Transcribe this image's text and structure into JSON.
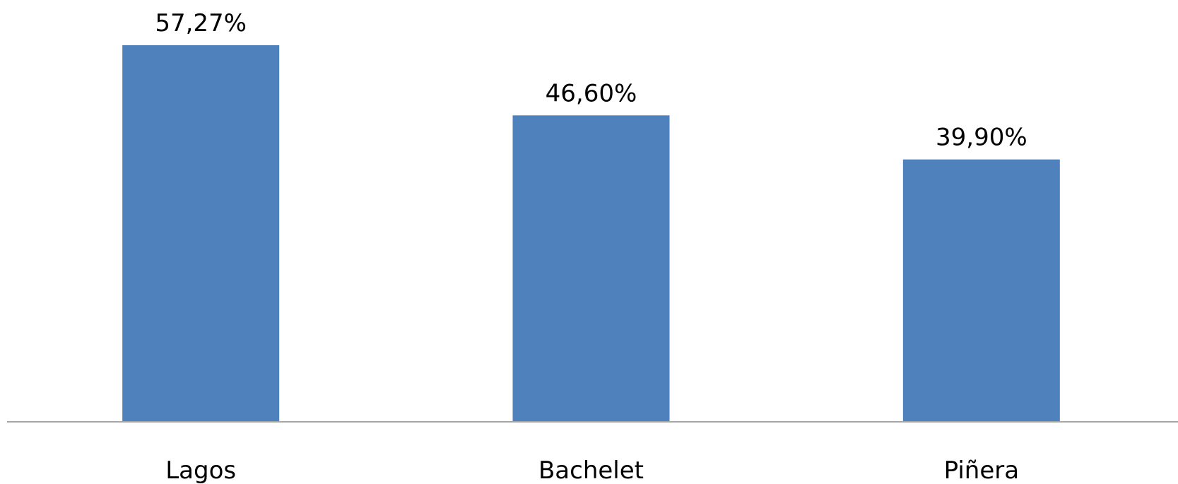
{
  "chart_data": {
    "type": "bar",
    "categories": [
      "Lagos",
      "Bachelet",
      "Piñera"
    ],
    "values": [
      57.27,
      46.6,
      39.9
    ],
    "value_labels": [
      "57,27%",
      "46,60%",
      "39,90%"
    ],
    "ylim": [
      0,
      60
    ],
    "grid": false,
    "legend": "none",
    "colors": {
      "bar": "#4f81bd",
      "axis": "#a6a6a6"
    }
  }
}
